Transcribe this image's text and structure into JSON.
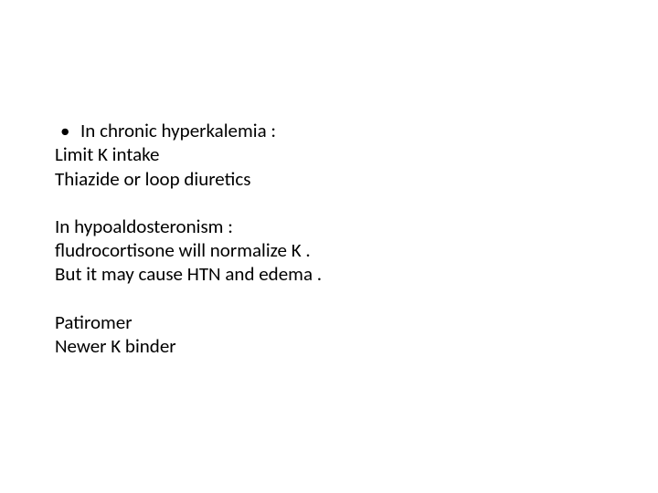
{
  "slide": {
    "background_color": "#ffffff",
    "text_color": "#000000",
    "font_family": "Calibri",
    "font_size_pt": 21,
    "bullet_char": "•",
    "paragraphs": [
      {
        "bulleted_line": "In chronic  hyperkalemia  :",
        "lines": [
          "Limit   K  intake",
          "Thiazide  or  loop  diuretics"
        ]
      },
      {
        "lines": [
          "In hypoaldosteronism :",
          " fludrocortisone  will  normalize  K .",
          "But  it  may cause  HTN   and  edema  ."
        ]
      },
      {
        "lines": [
          "Patiromer",
          "Newer  K  binder"
        ]
      }
    ]
  }
}
